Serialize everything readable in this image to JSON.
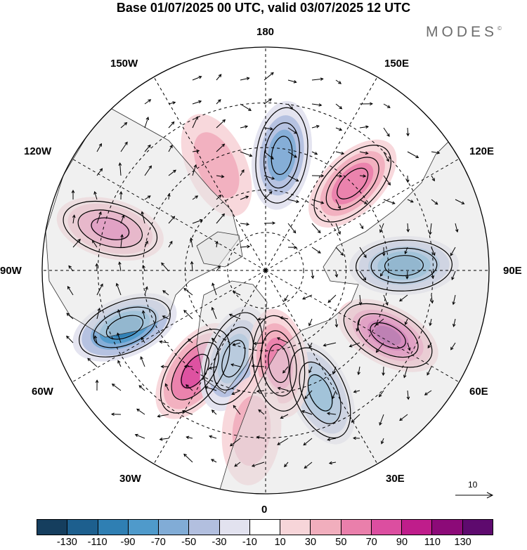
{
  "title": "Base 01/07/2025 00 UTC, valid 03/07/2025 12 UTC",
  "logo": {
    "text": "MODES",
    "mark": "©"
  },
  "longitude_labels": [
    {
      "key": "180",
      "text": "180"
    },
    {
      "key": "150e",
      "text": "150E"
    },
    {
      "key": "120e",
      "text": "120E"
    },
    {
      "key": "90e",
      "text": "90E"
    },
    {
      "key": "60e",
      "text": "60E"
    },
    {
      "key": "30e",
      "text": "30E"
    },
    {
      "key": "0",
      "text": "0"
    },
    {
      "key": "30w",
      "text": "30W"
    },
    {
      "key": "60w",
      "text": "60W"
    },
    {
      "key": "90w",
      "text": "90W"
    },
    {
      "key": "120w",
      "text": "120W"
    },
    {
      "key": "150w",
      "text": "150W"
    }
  ],
  "reference_vector": {
    "value": "10"
  },
  "colorbar": {
    "ticks": [
      "-130",
      "-110",
      "-90",
      "-70",
      "-50",
      "-30",
      "-10",
      "10",
      "30",
      "50",
      "70",
      "90",
      "110",
      "130"
    ],
    "colors": [
      "#153e5e",
      "#1d5f8e",
      "#2f7fb3",
      "#4f9acb",
      "#81acd6",
      "#b2bfdf",
      "#e2e2ef",
      "#ffffff",
      "#f7d5d9",
      "#f1aebd",
      "#ea7fab",
      "#dc4ea0",
      "#bf1d8b",
      "#8c0a78",
      "#5e0a6e"
    ]
  },
  "anomaly_centers": [
    {
      "lon": -105,
      "r": 0.72,
      "value": 70
    },
    {
      "lon": -68,
      "r": 0.68,
      "value": -100
    },
    {
      "lon": -35,
      "r": 0.55,
      "value": 70
    },
    {
      "lon": 24,
      "r": 0.6,
      "value": -80
    },
    {
      "lon": 62,
      "r": 0.62,
      "value": 110
    },
    {
      "lon": 92,
      "r": 0.62,
      "value": -100
    },
    {
      "lon": 135,
      "r": 0.55,
      "value": 50
    },
    {
      "lon": -155,
      "r": 0.52,
      "value": 40
    },
    {
      "lon": 172,
      "r": 0.52,
      "value": -50
    },
    {
      "lon": -20,
      "r": 0.42,
      "value": -50
    },
    {
      "lon": 8,
      "r": 0.42,
      "value": 50
    },
    {
      "lon": -5,
      "r": 0.72,
      "value": 40
    }
  ]
}
